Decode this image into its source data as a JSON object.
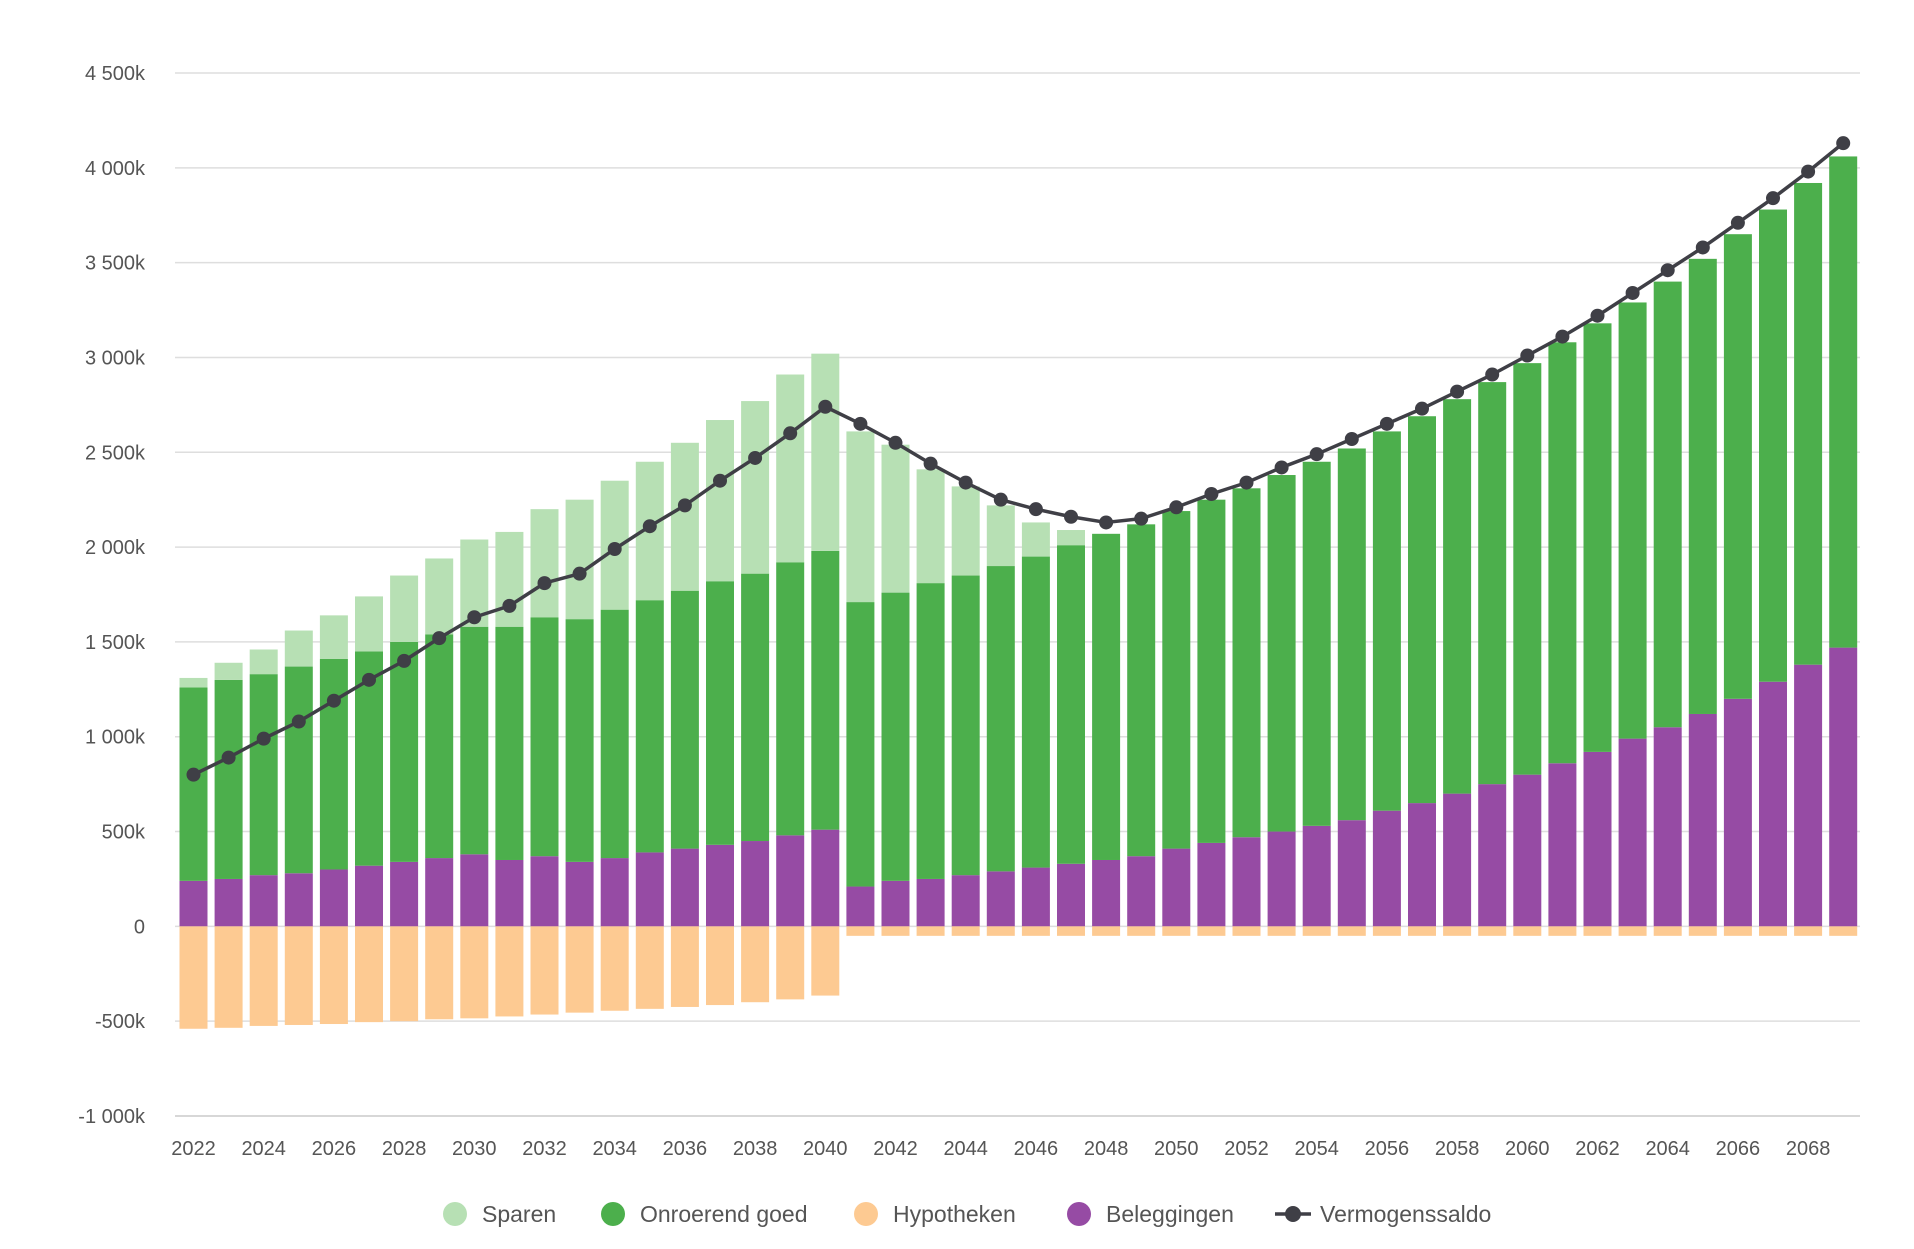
{
  "chart_data": {
    "type": "bar",
    "stacked": true,
    "title": "",
    "xlabel": "",
    "ylabel": "",
    "ylim": [
      -1000,
      4500
    ],
    "y_ticks": [
      -1000,
      -500,
      0,
      500,
      1000,
      1500,
      2000,
      2500,
      3000,
      3500,
      4000,
      4500
    ],
    "y_tick_labels": [
      "-1 000k",
      "-500k",
      "0",
      "500k",
      "1 000k",
      "1 500k",
      "2 000k",
      "2 500k",
      "3 000k",
      "3 500k",
      "4 000k",
      "4 500k"
    ],
    "x": [
      2022,
      2023,
      2024,
      2025,
      2026,
      2027,
      2028,
      2029,
      2030,
      2031,
      2032,
      2033,
      2034,
      2035,
      2036,
      2037,
      2038,
      2039,
      2040,
      2041,
      2042,
      2043,
      2044,
      2045,
      2046,
      2047,
      2048,
      2049,
      2050,
      2051,
      2052,
      2053,
      2054,
      2055,
      2056,
      2057,
      2058,
      2059,
      2060,
      2061,
      2062,
      2063,
      2064,
      2065,
      2066,
      2067,
      2068,
      2069
    ],
    "x_tick_labels": [
      "2022",
      "2024",
      "2026",
      "2028",
      "2030",
      "2032",
      "2034",
      "2036",
      "2038",
      "2040",
      "2042",
      "2044",
      "2046",
      "2048",
      "2050",
      "2052",
      "2054",
      "2056",
      "2058",
      "2060",
      "2062",
      "2064",
      "2066",
      "2068"
    ],
    "grid": true,
    "legend_position": "bottom-center",
    "series": [
      {
        "name": "Beleggingen",
        "color": "#964ba4",
        "values": [
          240,
          250,
          270,
          280,
          300,
          320,
          340,
          360,
          380,
          350,
          370,
          340,
          360,
          390,
          410,
          430,
          450,
          480,
          510,
          210,
          240,
          250,
          270,
          290,
          310,
          330,
          350,
          370,
          410,
          440,
          470,
          500,
          530,
          560,
          610,
          650,
          700,
          750,
          800,
          860,
          920,
          990,
          1050,
          1120,
          1200,
          1290,
          1380,
          1470
        ]
      },
      {
        "name": "Onroerend goed",
        "color": "#4caf4c",
        "values": [
          1020,
          1050,
          1060,
          1090,
          1110,
          1130,
          1160,
          1180,
          1200,
          1230,
          1260,
          1280,
          1310,
          1330,
          1360,
          1390,
          1410,
          1440,
          1470,
          1500,
          1520,
          1560,
          1580,
          1610,
          1640,
          1680,
          1720,
          1750,
          1780,
          1810,
          1840,
          1880,
          1920,
          1960,
          2000,
          2040,
          2080,
          2120,
          2170,
          2220,
          2260,
          2300,
          2350,
          2400,
          2450,
          2490,
          2540,
          2590
        ]
      },
      {
        "name": "Sparen",
        "color": "#b7e0b4",
        "values": [
          50,
          90,
          130,
          190,
          230,
          290,
          350,
          400,
          460,
          500,
          570,
          630,
          680,
          730,
          780,
          850,
          910,
          990,
          1040,
          900,
          780,
          600,
          470,
          320,
          180,
          80,
          0,
          0,
          0,
          0,
          0,
          0,
          0,
          0,
          0,
          0,
          0,
          0,
          0,
          0,
          0,
          0,
          0,
          0,
          0,
          0,
          0,
          0
        ]
      },
      {
        "name": "Hypotheken",
        "color": "#fdca92",
        "values": [
          -540,
          -535,
          -525,
          -520,
          -515,
          -505,
          -500,
          -490,
          -485,
          -475,
          -465,
          -455,
          -445,
          -435,
          -425,
          -415,
          -400,
          -385,
          -365,
          -50,
          -50,
          -50,
          -50,
          -50,
          -50,
          -50,
          -50,
          -50,
          -50,
          -50,
          -50,
          -50,
          -50,
          -50,
          -50,
          -50,
          -50,
          -50,
          -50,
          -50,
          -50,
          -50,
          -50,
          -50,
          -50,
          -50,
          -50,
          -50
        ]
      }
    ],
    "line_series": {
      "name": "Vermogenssaldo",
      "color": "#3f3f46",
      "values": [
        800,
        890,
        990,
        1080,
        1190,
        1300,
        1400,
        1520,
        1630,
        1690,
        1810,
        1860,
        1990,
        2110,
        2220,
        2350,
        2470,
        2600,
        2740,
        2650,
        2550,
        2440,
        2340,
        2250,
        2200,
        2160,
        2130,
        2150,
        2210,
        2280,
        2340,
        2420,
        2490,
        2570,
        2650,
        2730,
        2820,
        2910,
        3010,
        3110,
        3220,
        3340,
        3460,
        3580,
        3710,
        3840,
        3980,
        4130
      ]
    }
  }
}
